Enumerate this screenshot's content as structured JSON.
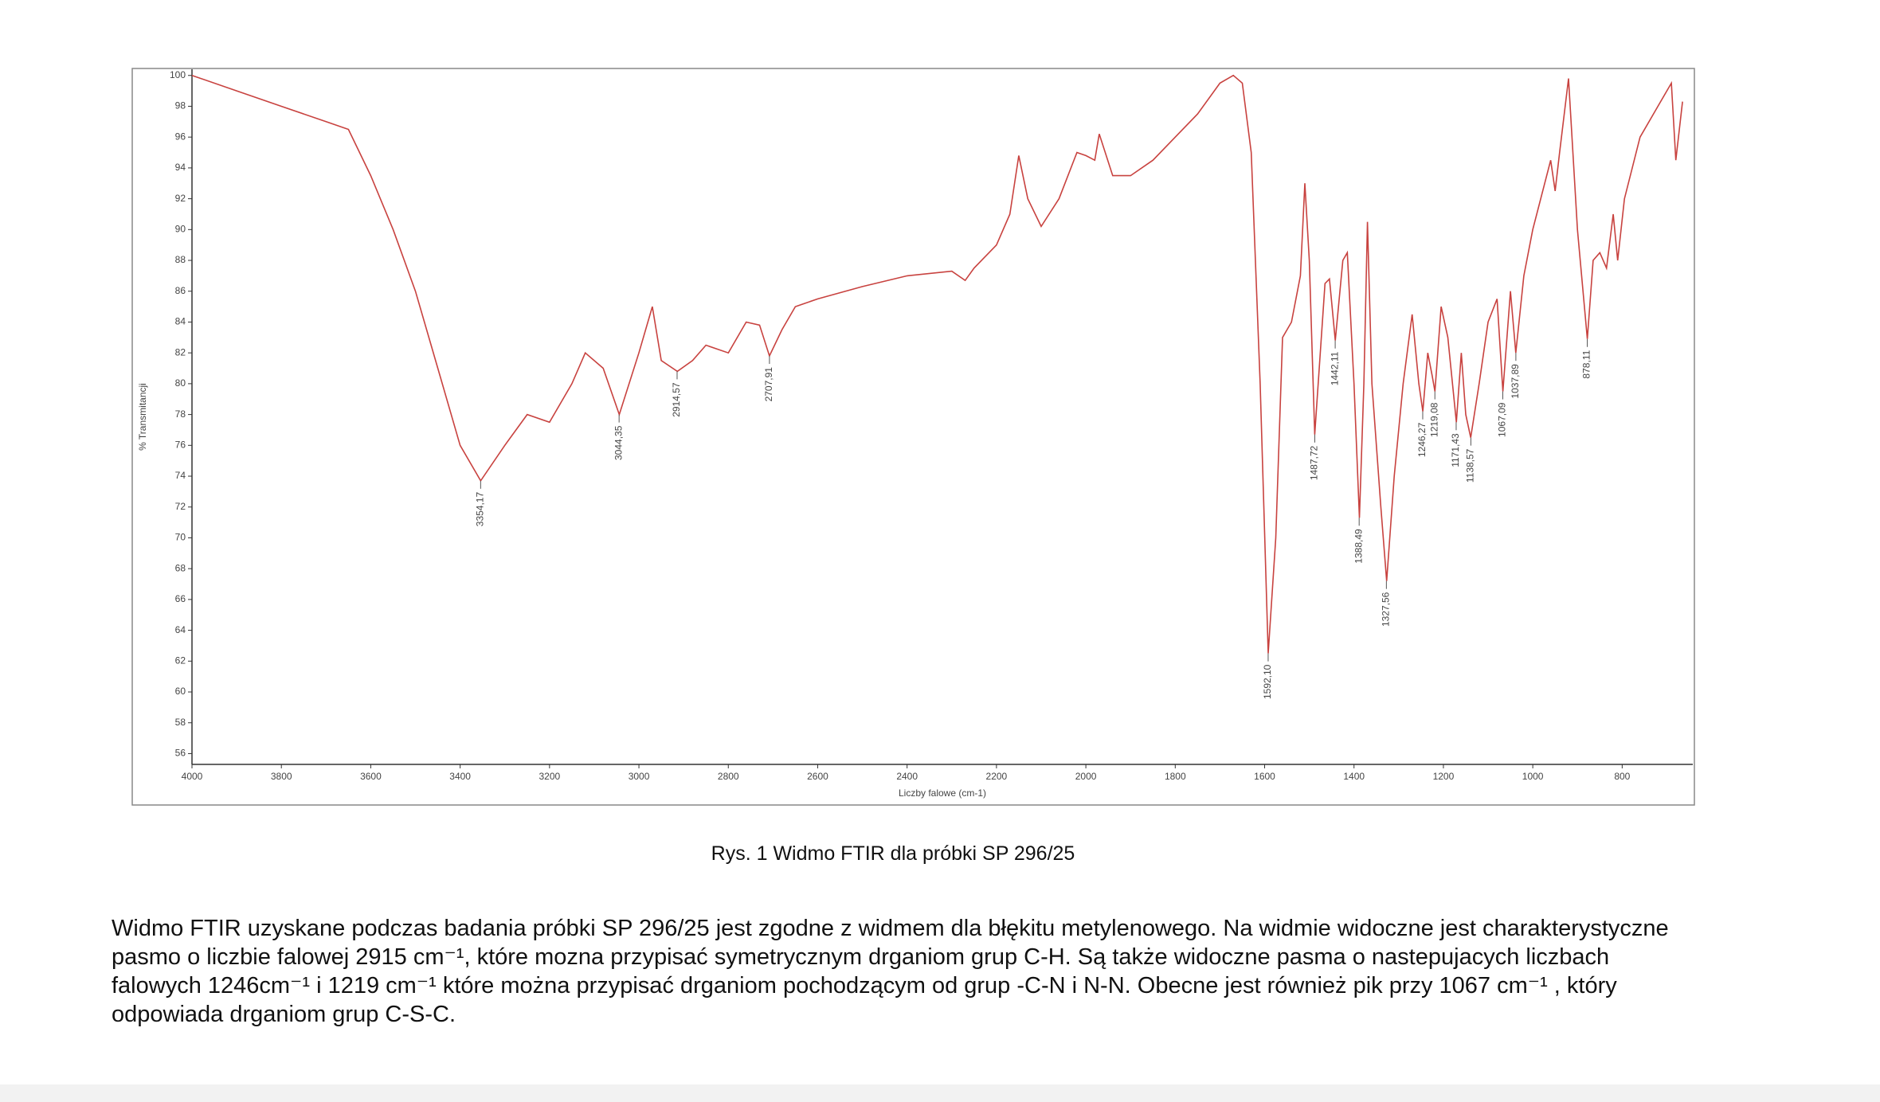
{
  "chart_data": {
    "type": "line",
    "xlabel": "Liczby falowe (cm-1)",
    "ylabel": "% Transmitancji",
    "xlim": [
      4000,
      642
    ],
    "ylim": [
      55.3,
      100.4
    ],
    "xticks": [
      4000,
      3800,
      3600,
      3400,
      3200,
      3000,
      2800,
      2600,
      2400,
      2200,
      2000,
      1800,
      1600,
      1400,
      1200,
      1000,
      800
    ],
    "yticks": [
      56,
      58,
      60,
      62,
      64,
      66,
      68,
      70,
      72,
      74,
      76,
      78,
      80,
      82,
      84,
      86,
      88,
      90,
      92,
      94,
      96,
      98,
      100
    ],
    "x": [
      4000,
      3900,
      3800,
      3700,
      3650,
      3600,
      3550,
      3500,
      3450,
      3400,
      3354,
      3300,
      3250,
      3200,
      3150,
      3120,
      3080,
      3044,
      3000,
      2970,
      2950,
      2914,
      2880,
      2850,
      2800,
      2760,
      2730,
      2708,
      2680,
      2650,
      2600,
      2500,
      2400,
      2300,
      2270,
      2250,
      2200,
      2170,
      2150,
      2130,
      2100,
      2060,
      2020,
      2000,
      1980,
      1970,
      1940,
      1900,
      1850,
      1800,
      1750,
      1700,
      1670,
      1650,
      1630,
      1610,
      1592,
      1575,
      1560,
      1540,
      1520,
      1510,
      1500,
      1488,
      1465,
      1455,
      1442,
      1425,
      1415,
      1400,
      1388,
      1378,
      1370,
      1360,
      1340,
      1327,
      1310,
      1290,
      1270,
      1255,
      1246,
      1235,
      1225,
      1219,
      1205,
      1190,
      1171,
      1160,
      1150,
      1139,
      1120,
      1100,
      1080,
      1067,
      1050,
      1038,
      1020,
      1000,
      960,
      950,
      940,
      920,
      900,
      878,
      865,
      850,
      835,
      820,
      810,
      795,
      760,
      720,
      690,
      680,
      665
    ],
    "series": [
      {
        "name": "SP 296/25",
        "color": "#c8423f",
        "values": [
          100,
          99,
          98,
          97,
          96.5,
          93.5,
          90,
          86,
          81,
          76,
          73.7,
          76,
          78,
          77.5,
          80,
          82,
          81,
          78,
          82,
          85,
          81.5,
          80.8,
          81.5,
          82.5,
          82,
          84,
          83.8,
          81.8,
          83.5,
          85,
          85.5,
          86.3,
          87,
          87.3,
          86.7,
          87.5,
          89,
          91,
          94.8,
          92,
          90.2,
          92,
          95,
          94.8,
          94.5,
          96.2,
          93.5,
          93.5,
          94.5,
          96,
          97.5,
          99.5,
          100,
          99.5,
          95,
          80,
          62.5,
          70,
          83,
          84,
          87,
          93,
          88,
          76.7,
          86.5,
          86.8,
          82.8,
          88,
          88.5,
          80,
          71.3,
          80,
          90.5,
          80,
          72,
          67.2,
          74,
          80,
          84.5,
          80,
          78.2,
          82,
          80.5,
          79.5,
          85,
          83,
          77.5,
          82,
          78,
          76.5,
          80,
          84,
          85.5,
          79.5,
          86,
          82,
          87,
          90,
          94.5,
          92.5,
          95,
          99.8,
          90,
          82.9,
          88,
          88.5,
          87.5,
          91,
          88,
          92,
          96,
          98,
          99.5,
          94.5,
          98.3
        ]
      }
    ],
    "annotations": [
      {
        "x": 3354.17,
        "y": 73.7,
        "label": "3354,17"
      },
      {
        "x": 3044.35,
        "y": 78,
        "label": "3044,35"
      },
      {
        "x": 2914.57,
        "y": 80.8,
        "label": "2914,57"
      },
      {
        "x": 2707.91,
        "y": 81.8,
        "label": "2707,91"
      },
      {
        "x": 1592.1,
        "y": 62.5,
        "label": "1592,10"
      },
      {
        "x": 1487.72,
        "y": 76.7,
        "label": "1487,72"
      },
      {
        "x": 1442.11,
        "y": 82.8,
        "label": "1442,11"
      },
      {
        "x": 1388.49,
        "y": 71.3,
        "label": "1388,49"
      },
      {
        "x": 1327.56,
        "y": 67.2,
        "label": "1327,56"
      },
      {
        "x": 1246.27,
        "y": 78.2,
        "label": "1246,27"
      },
      {
        "x": 1219.08,
        "y": 79.5,
        "label": "1219,08"
      },
      {
        "x": 1171.43,
        "y": 77.5,
        "label": "1171,43"
      },
      {
        "x": 1138.57,
        "y": 76.5,
        "label": "1138,57"
      },
      {
        "x": 1067.09,
        "y": 79.5,
        "label": "1067,09"
      },
      {
        "x": 1037.89,
        "y": 82,
        "label": "1037,89"
      },
      {
        "x": 878.11,
        "y": 82.9,
        "label": "878,11"
      }
    ]
  },
  "caption": "Rys. 1 Widmo FTIR dla próbki SP 296/25",
  "paragraph_lines": [
    "Widmo FTIR uzyskane podczas badania próbki SP 296/25 jest zgodne z widmem dla błękitu metylenowego. Na widmie widoczne jest charakterystyczne",
    "pasmo o liczbie falowej 2915 cm⁻¹, które mozna przypisać symetrycznym drganiom grup C-H. Są także widoczne pasma o nastepujacych liczbach",
    "falowych 1246cm⁻¹ i 1219 cm⁻¹ które można przypisać drganiom pochodzącym od grup -C-N i N-N. Obecne jest również pik przy 1067 cm⁻¹ , który",
    "odpowiada drganiom grup C-S-C."
  ]
}
